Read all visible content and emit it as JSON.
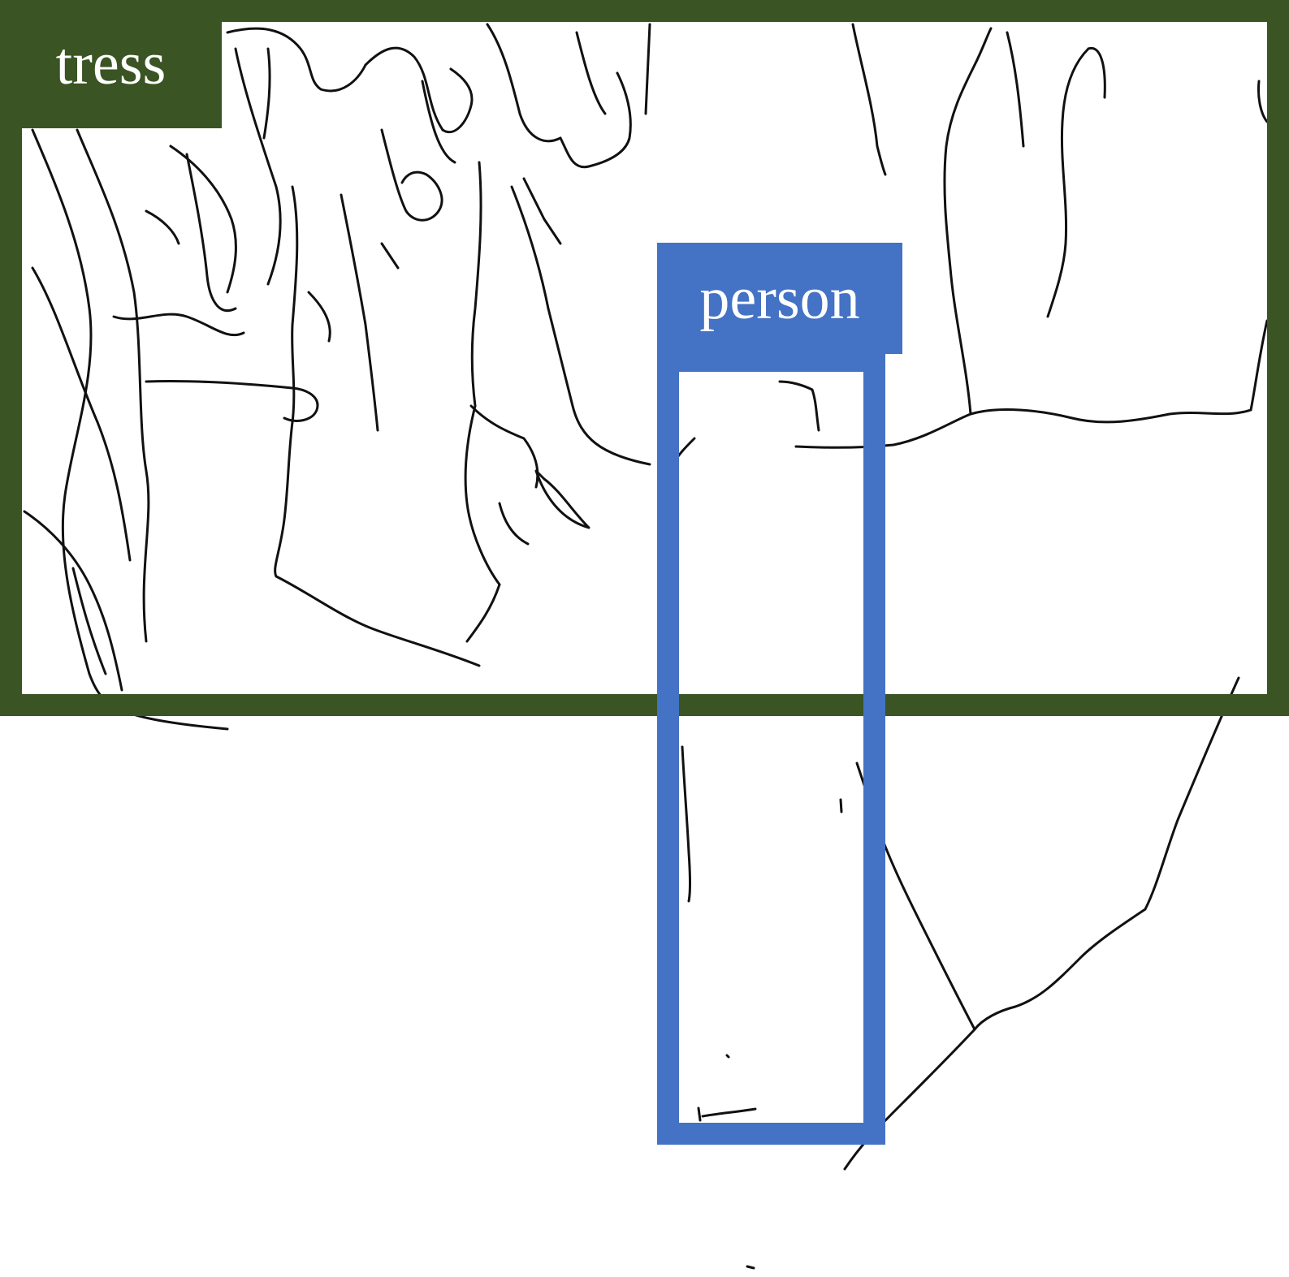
{
  "image": {
    "description_type": "line-drawing-with-detection-boxes",
    "background_color": "#ffffff",
    "sketch_color": "#111111"
  },
  "detections": [
    {
      "label": "tress",
      "color": "#3a5423"
    },
    {
      "label": "person",
      "color": "#4472c4"
    }
  ]
}
